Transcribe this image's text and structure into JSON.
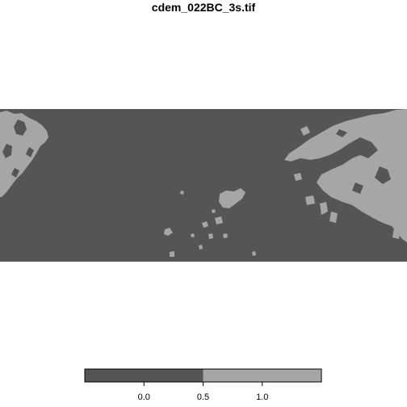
{
  "title": "cdem_022BC_3s.tif",
  "map": {
    "classes": [
      {
        "value": 0,
        "color": "#555555"
      },
      {
        "value": 1,
        "color": "#a6a6a6"
      }
    ]
  },
  "legend": {
    "range": [
      -0.5,
      1.5
    ],
    "break": 0.5,
    "ticks": [
      "0.0",
      "0.5",
      "1.0"
    ],
    "tick_values": [
      0.0,
      0.5,
      1.0
    ]
  }
}
